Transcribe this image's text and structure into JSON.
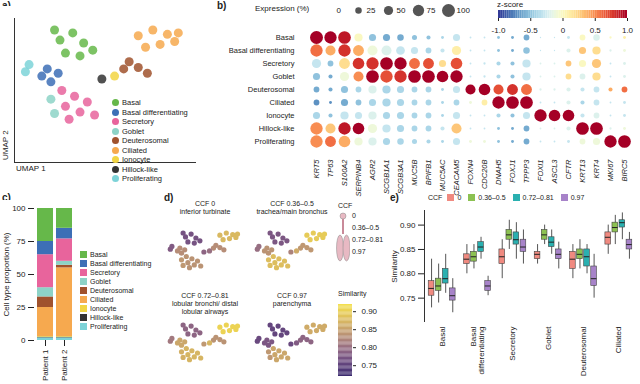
{
  "chart_data": [
    {
      "type": "scatter",
      "label": "a)",
      "xlabel": "UMAP 1",
      "ylabel": "UMAP 2",
      "xlim": [
        0,
        10
      ],
      "ylim": [
        0,
        10
      ],
      "tick_labels": false,
      "series": [
        {
          "name": "Basal",
          "color": "#66b84a",
          "x": [
            2.5,
            3.2,
            3.8,
            2.8,
            3.6,
            4.3,
            2.2
          ],
          "y": [
            8.5,
            9.0,
            8.3,
            7.6,
            7.4,
            7.8,
            9.2
          ]
        },
        {
          "name": "Basal differentiating",
          "color": "#3d6fb6",
          "x": [
            1.8,
            2.4,
            2.0,
            1.5
          ],
          "y": [
            6.5,
            6.2,
            5.6,
            6.0
          ]
        },
        {
          "name": "Secretory",
          "color": "#e8649c",
          "x": [
            2.6,
            3.3,
            4.0,
            2.8,
            3.6,
            4.4,
            3.0
          ],
          "y": [
            5.0,
            4.6,
            4.2,
            3.9,
            3.5,
            3.3,
            3.0
          ]
        },
        {
          "name": "Goblet",
          "color": "#8dd3c7",
          "x": [
            2.2,
            2.0
          ],
          "y": [
            3.4,
            4.4
          ]
        },
        {
          "name": "Deuterosomal",
          "color": "#a0522d",
          "x": [
            6.3,
            6.8,
            7.3,
            6.0
          ],
          "y": [
            7.0,
            6.6,
            6.2,
            6.5
          ]
        },
        {
          "name": "Ciliated",
          "color": "#f6a94f",
          "x": [
            6.8,
            7.6,
            8.4,
            7.2,
            8.0,
            8.8,
            9.0
          ],
          "y": [
            8.8,
            9.2,
            8.9,
            8.0,
            8.2,
            8.4,
            9.0
          ]
        },
        {
          "name": "Ionocyte",
          "color": "#f2d543",
          "x": [
            5.5
          ],
          "y": [
            6.0
          ]
        },
        {
          "name": "Hillock-like",
          "color": "#333333",
          "x": [
            4.8
          ],
          "y": [
            5.8
          ]
        },
        {
          "name": "Proliferating",
          "color": "#7dd3d8",
          "x": [
            0.6,
            0.8
          ],
          "y": [
            6.3,
            6.8
          ]
        }
      ]
    },
    {
      "type": "dotplot",
      "label": "b)",
      "categories": [
        "KRT5",
        "TP63",
        "S100A2",
        "SERPINB4",
        "AGR2",
        "SCGB1A1",
        "SCGB3A1",
        "MUC5B",
        "BPIFB1",
        "MUC5AC",
        "CEACAM5",
        "FOXN4",
        "CDC20B",
        "DNAH5",
        "FOXJ1",
        "TPPP3",
        "FOXI1",
        "ASCL3",
        "CFTR",
        "KRT13",
        "KRT4",
        "MKI67",
        "BIRC5"
      ],
      "rows": [
        "Basal",
        "Basal differentiating",
        "Secretory",
        "Goblet",
        "Deuterosomal",
        "Ciliated",
        "Ionocyte",
        "Hillock-like",
        "Proliferating"
      ],
      "size_legend": {
        "title": "Expression (%)",
        "values": [
          0,
          25,
          50,
          75,
          100
        ]
      },
      "colorbar": {
        "title": "z-score",
        "range": [
          -1,
          1
        ],
        "ticks": [
          {
            "value": -1,
            "label": "-1.0"
          },
          {
            "value": -0.5,
            "label": "-0.5"
          },
          0,
          0.5,
          {
            "value": 1,
            "label": "1.0"
          }
        ]
      },
      "expression": [
        [
          100,
          90,
          95,
          40,
          30,
          30,
          25,
          15,
          10,
          5,
          30,
          2,
          2,
          5,
          5,
          20,
          1,
          1,
          5,
          20,
          25,
          3,
          5
        ],
        [
          90,
          60,
          90,
          70,
          60,
          60,
          45,
          30,
          20,
          10,
          50,
          2,
          2,
          5,
          5,
          25,
          1,
          1,
          10,
          30,
          40,
          3,
          5
        ],
        [
          50,
          20,
          70,
          80,
          90,
          95,
          90,
          70,
          70,
          30,
          80,
          2,
          3,
          10,
          10,
          40,
          2,
          2,
          20,
          30,
          50,
          2,
          5
        ],
        [
          30,
          10,
          50,
          60,
          95,
          90,
          90,
          95,
          95,
          80,
          90,
          2,
          3,
          10,
          10,
          40,
          2,
          2,
          20,
          20,
          40,
          2,
          5
        ],
        [
          20,
          10,
          30,
          20,
          40,
          40,
          30,
          20,
          20,
          5,
          30,
          60,
          80,
          60,
          70,
          70,
          3,
          3,
          10,
          10,
          20,
          10,
          20
        ],
        [
          20,
          5,
          30,
          20,
          30,
          40,
          30,
          20,
          20,
          5,
          20,
          5,
          20,
          90,
          95,
          95,
          2,
          2,
          10,
          10,
          20,
          2,
          5
        ],
        [
          30,
          10,
          40,
          30,
          40,
          30,
          30,
          20,
          20,
          5,
          30,
          2,
          2,
          10,
          10,
          30,
          90,
          80,
          80,
          10,
          20,
          2,
          5
        ],
        [
          90,
          60,
          90,
          80,
          50,
          40,
          30,
          20,
          20,
          10,
          60,
          2,
          2,
          5,
          5,
          20,
          2,
          2,
          10,
          95,
          95,
          3,
          5
        ],
        [
          90,
          70,
          80,
          40,
          40,
          30,
          25,
          15,
          10,
          5,
          30,
          5,
          5,
          5,
          5,
          20,
          2,
          2,
          5,
          20,
          30,
          90,
          95
        ]
      ],
      "z_score": [
        [
          1.0,
          1.0,
          0.9,
          0.0,
          -0.5,
          -0.6,
          -0.6,
          -0.5,
          -0.5,
          -0.4,
          -0.3,
          -0.3,
          -0.3,
          -0.5,
          -0.6,
          -0.6,
          -0.3,
          -0.3,
          -0.3,
          0.0,
          -0.2,
          0.0,
          0.1
        ],
        [
          0.6,
          0.4,
          0.8,
          0.4,
          -0.1,
          -0.2,
          -0.3,
          -0.3,
          -0.4,
          -0.3,
          0.1,
          -0.3,
          -0.3,
          -0.5,
          -0.6,
          -0.5,
          -0.3,
          -0.3,
          -0.2,
          0.3,
          0.2,
          -0.2,
          -0.1
        ],
        [
          -0.3,
          -0.5,
          0.2,
          0.8,
          0.8,
          1.0,
          1.0,
          0.6,
          0.7,
          0.2,
          0.7,
          -0.3,
          -0.3,
          -0.4,
          -0.5,
          -0.3,
          -0.2,
          -0.2,
          0.3,
          0.0,
          0.3,
          -0.3,
          -0.2
        ],
        [
          -0.5,
          -0.6,
          -0.1,
          0.5,
          1.0,
          0.7,
          0.8,
          1.0,
          1.0,
          1.0,
          1.0,
          -0.3,
          -0.3,
          -0.4,
          -0.5,
          -0.3,
          -0.2,
          -0.2,
          0.2,
          -0.2,
          0.2,
          -0.3,
          -0.2
        ],
        [
          -0.6,
          -0.6,
          -0.5,
          -0.4,
          -0.2,
          -0.4,
          -0.4,
          -0.4,
          -0.4,
          -0.4,
          -0.3,
          1.0,
          1.0,
          0.7,
          0.8,
          0.6,
          -0.2,
          -0.2,
          -0.2,
          -0.3,
          -0.3,
          0.4,
          0.6
        ],
        [
          -0.7,
          -0.7,
          -0.6,
          -0.5,
          -0.4,
          -0.4,
          -0.4,
          -0.4,
          -0.4,
          -0.4,
          -0.4,
          -0.1,
          0.1,
          1.0,
          1.0,
          1.0,
          -0.3,
          -0.3,
          -0.2,
          -0.4,
          -0.3,
          -0.3,
          -0.3
        ],
        [
          -0.4,
          -0.5,
          -0.3,
          -0.3,
          -0.2,
          -0.4,
          -0.4,
          -0.4,
          -0.4,
          -0.4,
          -0.3,
          -0.3,
          -0.3,
          -0.4,
          -0.5,
          -0.3,
          1.0,
          1.0,
          1.0,
          -0.3,
          -0.2,
          -0.3,
          -0.3
        ],
        [
          0.5,
          0.3,
          0.9,
          1.0,
          -0.1,
          -0.3,
          -0.4,
          -0.4,
          -0.4,
          -0.3,
          0.3,
          -0.3,
          -0.3,
          -0.5,
          -0.6,
          -0.6,
          -0.2,
          -0.2,
          -0.2,
          1.0,
          1.0,
          -0.2,
          -0.1
        ],
        [
          0.5,
          0.6,
          0.4,
          -0.1,
          -0.2,
          -0.4,
          -0.4,
          -0.4,
          -0.4,
          -0.4,
          -0.3,
          -0.1,
          -0.1,
          -0.5,
          -0.6,
          -0.6,
          -0.3,
          -0.3,
          -0.3,
          -0.1,
          -0.1,
          1.0,
          1.0
        ]
      ]
    },
    {
      "type": "bar",
      "stacked": true,
      "label": "c)",
      "categories": [
        "Patient 1",
        "Patient 2"
      ],
      "ylabel": "Cell type proportion (%)",
      "ylim": [
        0,
        100
      ],
      "yticks": [
        0,
        25,
        50,
        75,
        100
      ],
      "series": [
        {
          "name": "Basal",
          "color": "#66b84a",
          "values": [
            25,
            15
          ]
        },
        {
          "name": "Basal differentiating",
          "color": "#3d6fb6",
          "values": [
            10,
            8
          ]
        },
        {
          "name": "Secretory",
          "color": "#e8649c",
          "values": [
            25,
            17
          ]
        },
        {
          "name": "Goblet",
          "color": "#8dd3c7",
          "values": [
            7,
            3
          ]
        },
        {
          "name": "Deuterosomal",
          "color": "#a0522d",
          "values": [
            8,
            2
          ]
        },
        {
          "name": "Ciliated",
          "color": "#f6a94f",
          "values": [
            22,
            52
          ]
        },
        {
          "name": "Ionocyte",
          "color": "#f2d543",
          "values": [
            0.5,
            0.5
          ]
        },
        {
          "name": "Hillock-like",
          "color": "#333333",
          "values": [
            0.5,
            0.5
          ]
        },
        {
          "name": "Proliferating",
          "color": "#7dd3d8",
          "values": [
            2,
            2
          ]
        }
      ]
    },
    {
      "type": "scatter",
      "label": "d)",
      "tick_labels": false,
      "cell_types": [
        "Basal",
        "Basal differentiating",
        "Secretory",
        "Goblet",
        "Deuterosomal",
        "Ciliated",
        "Ionocyte",
        "Hillock-like",
        "Proliferating"
      ],
      "panels": [
        {
          "title": "CCF 0",
          "subtitle": "inferior turbinate",
          "similarity": [
            0.77,
            0.83,
            0.835,
            0.84,
            0.83,
            0.875,
            0.8,
            0.79,
            0.78
          ]
        },
        {
          "title": "CCF 0.36–0.5",
          "subtitle": "trachea/main bronchus",
          "similarity": [
            0.775,
            0.835,
            0.88,
            0.88,
            0.84,
            0.895,
            0.86,
            0.82,
            0.8
          ]
        },
        {
          "title": "CCF 0.72–0.81",
          "subtitle": "lobular bronchi/ distal lobular airways",
          "similarity": [
            0.79,
            0.855,
            0.87,
            0.865,
            0.835,
            0.905,
            0.87,
            0.84,
            0.81
          ]
        },
        {
          "title": "CCF 0.97",
          "subtitle": "parenchyma",
          "similarity": [
            0.755,
            0.775,
            0.855,
            0.84,
            0.79,
            0.86,
            0.78,
            0.76,
            0.76
          ]
        }
      ],
      "ccf_diagram": {
        "title": "CCF",
        "labels": [
          "0",
          "0.36–0.5",
          "0.72–0.81",
          "0.97"
        ]
      },
      "colorbar": {
        "title": "Similarity",
        "range": [
          0.72,
          0.92
        ],
        "ticks": [
          0.75,
          {
            "value": 0.8,
            "label": "0.80"
          },
          0.85,
          {
            "value": 0.9,
            "label": "0.90"
          }
        ]
      }
    },
    {
      "type": "box",
      "label": "e)",
      "categories": [
        "Basal",
        "Basal\ndifferentiating",
        "Secretory",
        "Goblet",
        "Deuterosomal",
        "Ciliated"
      ],
      "ylabel": "Similarity",
      "ylim": [
        0.7,
        0.93
      ],
      "yticks": [
        0.75,
        {
          "value": 0.8,
          "label": "0.80"
        },
        0.85,
        {
          "value": 0.9,
          "label": "0.90"
        }
      ],
      "legend_title": "CCF",
      "series": [
        {
          "name": "0",
          "color": "#f08a80",
          "q1": [
            0.755,
            0.82,
            0.82,
            0.83,
            0.81,
            0.86
          ],
          "median": [
            0.77,
            0.83,
            0.835,
            0.84,
            0.83,
            0.875
          ],
          "q3": [
            0.785,
            0.84,
            0.85,
            0.845,
            0.845,
            0.885
          ],
          "whisker_low": [
            0.73,
            0.8,
            0.79,
            0.82,
            0.79,
            0.84
          ],
          "whisker_high": [
            0.83,
            0.86,
            0.87,
            0.86,
            0.86,
            0.9
          ]
        },
        {
          "name": "0.36–0.5",
          "color": "#8cc152",
          "q1": [
            0.765,
            0.825,
            0.87,
            0.87,
            0.83,
            0.885
          ],
          "median": [
            0.775,
            0.835,
            0.88,
            0.88,
            0.84,
            0.895
          ],
          "q3": [
            0.79,
            0.845,
            0.89,
            0.89,
            0.85,
            0.905
          ],
          "whisker_low": [
            0.74,
            0.81,
            0.85,
            0.86,
            0.81,
            0.86
          ],
          "whisker_high": [
            0.82,
            0.86,
            0.91,
            0.9,
            0.87,
            0.92
          ]
        },
        {
          "name": "0.72–0.81",
          "color": "#2ab0b0",
          "q1": [
            0.78,
            0.845,
            0.86,
            0.855,
            0.815,
            0.895
          ],
          "median": [
            0.79,
            0.855,
            0.87,
            0.865,
            0.835,
            0.905
          ],
          "q3": [
            0.81,
            0.865,
            0.885,
            0.875,
            0.85,
            0.91
          ],
          "whisker_low": [
            0.76,
            0.83,
            0.83,
            0.84,
            0.8,
            0.87
          ],
          "whisker_high": [
            0.84,
            0.875,
            0.905,
            0.89,
            0.86,
            0.925
          ]
        },
        {
          "name": "0.97",
          "color": "#a783c9",
          "q1": [
            0.745,
            0.765,
            0.845,
            0.83,
            0.775,
            0.85
          ],
          "median": [
            0.755,
            0.775,
            0.855,
            0.84,
            0.79,
            0.86
          ],
          "q3": [
            0.77,
            0.785,
            0.87,
            0.85,
            0.815,
            0.87
          ],
          "whisker_low": [
            0.72,
            0.755,
            0.82,
            0.81,
            0.75,
            0.83
          ],
          "whisker_high": [
            0.79,
            0.795,
            0.89,
            0.865,
            0.84,
            0.885
          ]
        }
      ]
    }
  ]
}
